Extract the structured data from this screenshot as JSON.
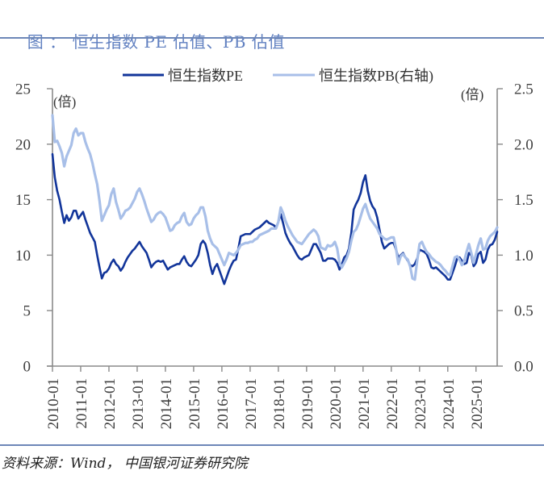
{
  "header": {
    "prefix": "图 ：",
    "title": "恒生指数 PE 估值、PB 估值"
  },
  "footer": {
    "source": "资料来源：Wind， 中国银河证券研究院"
  },
  "chart_data": {
    "type": "line",
    "title": "恒生指数 PE 估值、PB 估值",
    "legend": "top-center",
    "grid": false,
    "xlim": [
      "2010-01",
      "2025-10"
    ],
    "xticks": [
      "2010-01",
      "2011-01",
      "2012-01",
      "2013-01",
      "2014-01",
      "2015-01",
      "2016-01",
      "2017-01",
      "2018-01",
      "2019-01",
      "2020-01",
      "2021-01",
      "2022-01",
      "2023-01",
      "2024-01",
      "2025-01"
    ],
    "y_left": {
      "label": "(倍)",
      "lim": [
        0,
        25
      ],
      "ticks": [
        0,
        5,
        10,
        15,
        20,
        25
      ],
      "tick_labels": [
        "0",
        "5",
        "10",
        "15",
        "20",
        "25"
      ]
    },
    "y_right": {
      "label": "(倍)",
      "lim": [
        0,
        2.5
      ],
      "ticks": [
        0,
        0.5,
        1.0,
        1.5,
        2.0,
        2.5
      ],
      "tick_labels": [
        "0.0",
        "0.5",
        "1.0",
        "1.5",
        "2.0",
        "2.5"
      ]
    },
    "x": [
      "2010-01",
      "2010-02",
      "2010-03",
      "2010-04",
      "2010-05",
      "2010-06",
      "2010-07",
      "2010-08",
      "2010-09",
      "2010-10",
      "2010-11",
      "2010-12",
      "2011-01",
      "2011-02",
      "2011-03",
      "2011-04",
      "2011-05",
      "2011-06",
      "2011-07",
      "2011-08",
      "2011-09",
      "2011-10",
      "2011-11",
      "2011-12",
      "2012-01",
      "2012-02",
      "2012-03",
      "2012-04",
      "2012-05",
      "2012-06",
      "2012-07",
      "2012-08",
      "2012-09",
      "2012-10",
      "2012-11",
      "2012-12",
      "2013-01",
      "2013-02",
      "2013-03",
      "2013-04",
      "2013-05",
      "2013-06",
      "2013-07",
      "2013-08",
      "2013-09",
      "2013-10",
      "2013-11",
      "2013-12",
      "2014-01",
      "2014-02",
      "2014-03",
      "2014-04",
      "2014-05",
      "2014-06",
      "2014-07",
      "2014-08",
      "2014-09",
      "2014-10",
      "2014-11",
      "2014-12",
      "2015-01",
      "2015-02",
      "2015-03",
      "2015-04",
      "2015-05",
      "2015-06",
      "2015-07",
      "2015-08",
      "2015-09",
      "2015-10",
      "2015-11",
      "2015-12",
      "2016-01",
      "2016-02",
      "2016-03",
      "2016-04",
      "2016-05",
      "2016-06",
      "2016-07",
      "2016-08",
      "2016-09",
      "2016-10",
      "2016-11",
      "2016-12",
      "2017-01",
      "2017-02",
      "2017-03",
      "2017-04",
      "2017-05",
      "2017-06",
      "2017-07",
      "2017-08",
      "2017-09",
      "2017-10",
      "2017-11",
      "2017-12",
      "2018-01",
      "2018-02",
      "2018-03",
      "2018-04",
      "2018-05",
      "2018-06",
      "2018-07",
      "2018-08",
      "2018-09",
      "2018-10",
      "2018-11",
      "2018-12",
      "2019-01",
      "2019-02",
      "2019-03",
      "2019-04",
      "2019-05",
      "2019-06",
      "2019-07",
      "2019-08",
      "2019-09",
      "2019-10",
      "2019-11",
      "2019-12",
      "2020-01",
      "2020-02",
      "2020-03",
      "2020-04",
      "2020-05",
      "2020-06",
      "2020-07",
      "2020-08",
      "2020-09",
      "2020-10",
      "2020-11",
      "2020-12",
      "2021-01",
      "2021-02",
      "2021-03",
      "2021-04",
      "2021-05",
      "2021-06",
      "2021-07",
      "2021-08",
      "2021-09",
      "2021-10",
      "2021-11",
      "2021-12",
      "2022-01",
      "2022-02",
      "2022-03",
      "2022-04",
      "2022-05",
      "2022-06",
      "2022-07",
      "2022-08",
      "2022-09",
      "2022-10",
      "2022-11",
      "2022-12",
      "2023-01",
      "2023-02",
      "2023-03",
      "2023-04",
      "2023-05",
      "2023-06",
      "2023-07",
      "2023-08",
      "2023-09",
      "2023-10",
      "2023-11",
      "2023-12",
      "2024-01",
      "2024-02",
      "2024-03",
      "2024-04",
      "2024-05",
      "2024-06",
      "2024-07",
      "2024-08",
      "2024-09",
      "2024-10",
      "2024-11",
      "2024-12",
      "2025-01",
      "2025-02",
      "2025-03",
      "2025-04",
      "2025-05",
      "2025-06",
      "2025-07",
      "2025-08",
      "2025-09",
      "2025-10"
    ],
    "series": [
      {
        "name": "恒生指数PE",
        "axis": "left",
        "color": "#12359a",
        "values": [
          19.1,
          17.0,
          15.8,
          15.0,
          13.9,
          12.9,
          13.6,
          13.1,
          13.4,
          14.0,
          14.0,
          13.3,
          13.6,
          13.9,
          13.2,
          12.6,
          12.0,
          11.6,
          11.2,
          10.0,
          8.9,
          7.9,
          8.4,
          8.5,
          8.8,
          9.3,
          9.6,
          9.2,
          9.0,
          8.6,
          8.9,
          9.4,
          9.8,
          10.1,
          10.4,
          10.6,
          10.9,
          11.2,
          10.8,
          10.5,
          10.2,
          9.6,
          8.9,
          9.2,
          9.4,
          9.5,
          9.4,
          9.5,
          9.1,
          8.7,
          8.9,
          9.0,
          9.1,
          9.2,
          9.2,
          9.6,
          9.9,
          9.4,
          9.1,
          9.0,
          9.3,
          9.6,
          10.0,
          11.0,
          11.3,
          11.0,
          10.2,
          9.1,
          8.3,
          8.9,
          9.2,
          8.6,
          8.0,
          7.4,
          8.0,
          8.6,
          9.1,
          9.5,
          9.6,
          10.6,
          11.7,
          11.8,
          11.9,
          11.9,
          11.9,
          12.1,
          12.3,
          12.4,
          12.5,
          12.7,
          12.9,
          13.1,
          12.9,
          12.8,
          12.7,
          12.5,
          13.0,
          13.7,
          12.9,
          12.0,
          11.5,
          11.1,
          10.8,
          10.4,
          10.0,
          9.7,
          9.6,
          9.8,
          9.9,
          10.0,
          10.5,
          11.0,
          11.0,
          10.6,
          10.2,
          9.5,
          9.5,
          9.7,
          9.7,
          9.7,
          9.6,
          9.3,
          8.7,
          9.2,
          9.8,
          10.0,
          10.6,
          12.0,
          14.1,
          14.6,
          15.0,
          15.6,
          16.6,
          17.2,
          15.8,
          14.9,
          14.4,
          14.1,
          13.4,
          12.3,
          11.2,
          10.6,
          10.8,
          11.0,
          11.1,
          11.1,
          10.5,
          9.8,
          10.0,
          10.2,
          9.8,
          9.5,
          9.1,
          9.0,
          9.2,
          9.7,
          10.5,
          10.4,
          10.3,
          10.1,
          9.6,
          8.9,
          8.8,
          8.9,
          8.7,
          8.5,
          8.3,
          8.1,
          7.8,
          7.8,
          8.4,
          9.0,
          9.7,
          9.8,
          9.5,
          9.2,
          9.3,
          10.2,
          10.0,
          9.0,
          9.3,
          10.1,
          10.3,
          9.3,
          9.6,
          10.5,
          10.9,
          11.0,
          11.4,
          12.1
        ]
      },
      {
        "name": "恒生指数PB(右轴)",
        "axis": "right",
        "color": "#a8bfe8",
        "values": [
          2.26,
          2.02,
          2.03,
          1.98,
          1.92,
          1.8,
          1.89,
          1.94,
          1.99,
          2.1,
          2.14,
          2.08,
          2.1,
          2.1,
          2.02,
          1.96,
          1.91,
          1.83,
          1.73,
          1.64,
          1.49,
          1.31,
          1.36,
          1.41,
          1.45,
          1.55,
          1.6,
          1.48,
          1.41,
          1.33,
          1.36,
          1.4,
          1.41,
          1.43,
          1.47,
          1.51,
          1.57,
          1.6,
          1.55,
          1.49,
          1.42,
          1.36,
          1.3,
          1.32,
          1.36,
          1.38,
          1.39,
          1.37,
          1.34,
          1.28,
          1.22,
          1.23,
          1.27,
          1.29,
          1.3,
          1.35,
          1.38,
          1.3,
          1.27,
          1.28,
          1.33,
          1.36,
          1.38,
          1.43,
          1.43,
          1.35,
          1.22,
          1.15,
          1.1,
          1.08,
          1.06,
          1.01,
          0.96,
          0.91,
          0.96,
          1.02,
          1.01,
          1.0,
          1.02,
          1.05,
          1.09,
          1.1,
          1.11,
          1.11,
          1.12,
          1.12,
          1.14,
          1.15,
          1.18,
          1.19,
          1.2,
          1.21,
          1.22,
          1.24,
          1.24,
          1.24,
          1.3,
          1.43,
          1.38,
          1.31,
          1.26,
          1.22,
          1.18,
          1.15,
          1.12,
          1.11,
          1.1,
          1.13,
          1.16,
          1.19,
          1.21,
          1.23,
          1.21,
          1.17,
          1.07,
          1.06,
          1.05,
          1.09,
          1.08,
          1.09,
          1.12,
          1.06,
          0.93,
          0.89,
          0.93,
          0.97,
          1.03,
          1.13,
          1.21,
          1.23,
          1.28,
          1.35,
          1.42,
          1.46,
          1.39,
          1.33,
          1.3,
          1.27,
          1.24,
          1.19,
          1.17,
          1.15,
          1.14,
          1.15,
          1.16,
          1.16,
          1.06,
          0.92,
          0.99,
          1.01,
          0.98,
          0.96,
          0.9,
          0.79,
          0.78,
          0.95,
          1.1,
          1.12,
          1.07,
          1.03,
          1.01,
          0.98,
          0.96,
          0.94,
          0.93,
          0.91,
          0.88,
          0.86,
          0.83,
          0.82,
          0.9,
          0.98,
          0.99,
          0.96,
          0.91,
          0.95,
          1.03,
          1.1,
          1.02,
          0.93,
          1.01,
          1.09,
          1.15,
          1.05,
          1.06,
          1.13,
          1.17,
          1.19,
          1.21,
          1.25
        ]
      }
    ]
  }
}
